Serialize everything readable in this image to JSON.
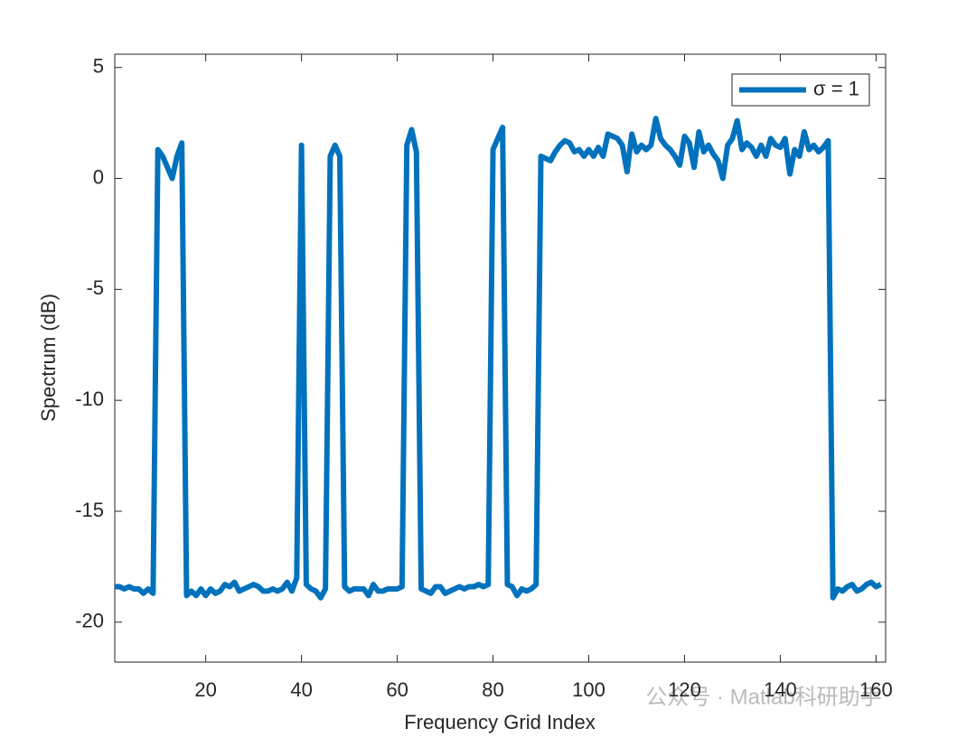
{
  "chart_data": {
    "type": "line",
    "xlabel": "Frequency Grid Index",
    "ylabel": "Spectrum (dB)",
    "watermark": "公众号 · Matlab科研助手",
    "legend_position": "upper right",
    "grid": false,
    "xlim": [
      1,
      162
    ],
    "ylim": [
      -21.8,
      5.6
    ],
    "xticks": [
      20,
      40,
      60,
      80,
      100,
      120,
      140,
      160
    ],
    "yticks": [
      -20,
      -15,
      -10,
      -5,
      0,
      5
    ],
    "x": [
      1,
      2,
      3,
      4,
      5,
      6,
      7,
      8,
      9,
      10,
      11,
      12,
      13,
      14,
      15,
      16,
      17,
      18,
      19,
      20,
      21,
      22,
      23,
      24,
      25,
      26,
      27,
      28,
      29,
      30,
      31,
      32,
      33,
      34,
      35,
      36,
      37,
      38,
      39,
      40,
      41,
      42,
      43,
      44,
      45,
      46,
      47,
      48,
      49,
      50,
      51,
      52,
      53,
      54,
      55,
      56,
      57,
      58,
      59,
      60,
      61,
      62,
      63,
      64,
      65,
      66,
      67,
      68,
      69,
      70,
      71,
      72,
      73,
      74,
      75,
      76,
      77,
      78,
      79,
      80,
      81,
      82,
      83,
      84,
      85,
      86,
      87,
      88,
      89,
      90,
      91,
      92,
      93,
      94,
      95,
      96,
      97,
      98,
      99,
      100,
      101,
      102,
      103,
      104,
      105,
      106,
      107,
      108,
      109,
      110,
      111,
      112,
      113,
      114,
      115,
      116,
      117,
      118,
      119,
      120,
      121,
      122,
      123,
      124,
      125,
      126,
      127,
      128,
      129,
      130,
      131,
      132,
      133,
      134,
      135,
      136,
      137,
      138,
      139,
      140,
      141,
      142,
      143,
      144,
      145,
      146,
      147,
      148,
      149,
      150,
      151,
      152,
      153,
      154,
      155,
      156,
      157,
      158,
      159,
      160,
      161
    ],
    "series": [
      {
        "name": "σ = 1",
        "color": "#0072bd",
        "values": [
          -18.4,
          -18.4,
          -18.5,
          -18.4,
          -18.5,
          -18.5,
          -18.7,
          -18.5,
          -18.7,
          1.3,
          1.0,
          0.5,
          0.0,
          1.0,
          1.6,
          -18.8,
          -18.6,
          -18.8,
          -18.5,
          -18.8,
          -18.5,
          -18.7,
          -18.6,
          -18.3,
          -18.4,
          -18.2,
          -18.6,
          -18.5,
          -18.4,
          -18.3,
          -18.4,
          -18.6,
          -18.6,
          -18.5,
          -18.6,
          -18.5,
          -18.2,
          -18.6,
          -18.0,
          1.5,
          -18.3,
          -18.5,
          -18.6,
          -18.9,
          -18.5,
          1.0,
          1.5,
          1.0,
          -18.4,
          -18.6,
          -18.5,
          -18.5,
          -18.5,
          -18.8,
          -18.3,
          -18.6,
          -18.6,
          -18.5,
          -18.5,
          -18.5,
          -18.4,
          1.5,
          2.2,
          1.2,
          -18.5,
          -18.6,
          -18.7,
          -18.4,
          -18.4,
          -18.7,
          -18.6,
          -18.5,
          -18.4,
          -18.5,
          -18.4,
          -18.4,
          -18.3,
          -18.4,
          -18.3,
          1.3,
          1.8,
          2.3,
          -18.3,
          -18.4,
          -18.8,
          -18.5,
          -18.6,
          -18.5,
          -18.3,
          1.0,
          0.9,
          0.8,
          1.2,
          1.5,
          1.7,
          1.6,
          1.2,
          1.3,
          1.0,
          1.3,
          1.0,
          1.4,
          1.0,
          2.0,
          1.9,
          1.8,
          1.5,
          0.3,
          2.0,
          1.2,
          1.5,
          1.3,
          1.5,
          2.7,
          1.8,
          1.5,
          1.3,
          1.0,
          0.6,
          1.9,
          1.6,
          0.5,
          2.1,
          1.2,
          1.5,
          1.1,
          0.8,
          0.0,
          1.5,
          1.8,
          2.6,
          1.3,
          1.6,
          1.4,
          1.0,
          1.5,
          1.0,
          1.8,
          1.5,
          1.4,
          1.8,
          0.2,
          1.3,
          1.0,
          2.1,
          1.3,
          1.5,
          1.2,
          1.4,
          1.7,
          -18.9,
          -18.5,
          -18.6,
          -18.4,
          -18.3,
          -18.6,
          -18.5,
          -18.3,
          -18.2,
          -18.4,
          -18.3
        ]
      }
    ]
  }
}
